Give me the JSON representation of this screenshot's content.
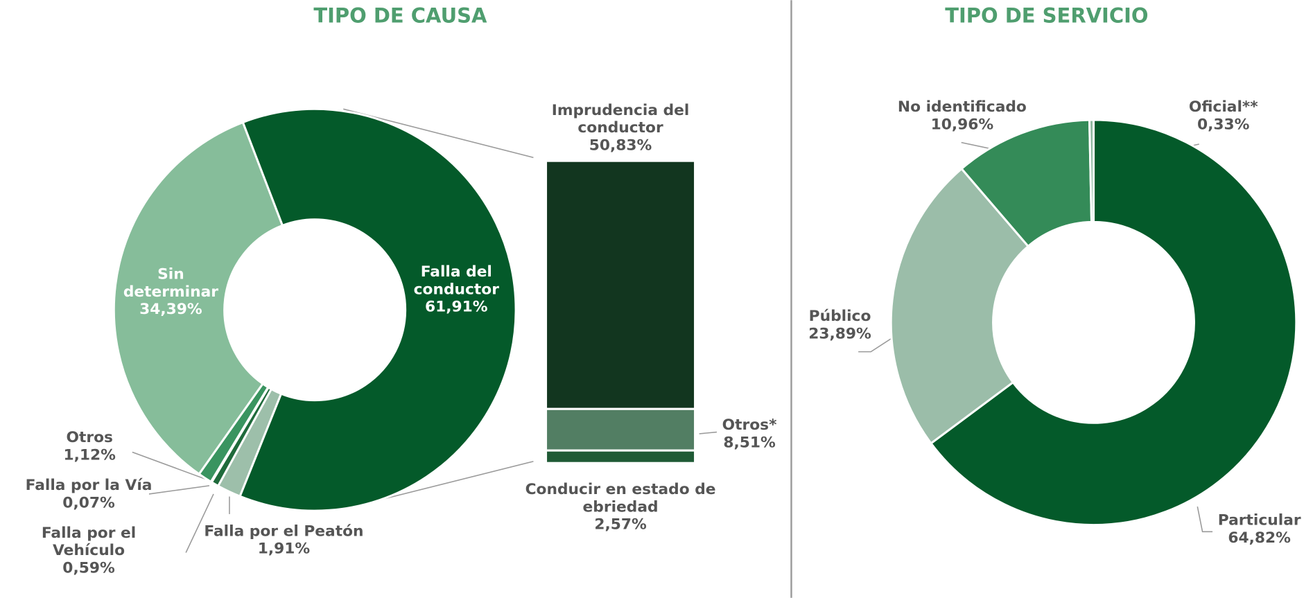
{
  "chart_data": [
    {
      "type": "pie",
      "title": "TIPO DE CAUSA",
      "donut": true,
      "categories": [
        "Falla del conductor",
        "Falla por el Peatón",
        "Falla por el Vehículo",
        "Falla por la Vía",
        "Otros",
        "Sin determinar"
      ],
      "values": [
        61.91,
        1.91,
        0.59,
        0.07,
        1.12,
        34.39
      ],
      "value_labels": [
        "61,91%",
        "1,91%",
        "0,59%",
        "0,07%",
        "1,12%",
        "34,39%"
      ],
      "colors": [
        "#045a2a",
        "#9dbfaa",
        "#1f6a3b",
        "#0b4d26",
        "#3a9460",
        "#86bd9a"
      ],
      "breakdown": {
        "type": "bar",
        "stacked": true,
        "categories": [
          "Imprudencia del conductor",
          "Otros*",
          "Conducir en estado de ebriedad"
        ],
        "values": [
          50.83,
          8.51,
          2.57
        ],
        "value_labels": [
          "50,83%",
          "8,51%",
          "2,57%"
        ],
        "colors": [
          "#12361f",
          "#527e63",
          "#1f5a35"
        ]
      }
    },
    {
      "type": "pie",
      "title": "TIPO DE SERVICIO",
      "donut": true,
      "categories": [
        "Particular",
        "Público",
        "No identificado",
        "Oficial**"
      ],
      "values": [
        64.82,
        23.89,
        10.96,
        0.33
      ],
      "value_labels": [
        "64,82%",
        "23,89%",
        "10,96%",
        "0,33%"
      ],
      "colors": [
        "#045a2a",
        "#9bbda9",
        "#348b58",
        "#8fb9a0"
      ]
    }
  ]
}
